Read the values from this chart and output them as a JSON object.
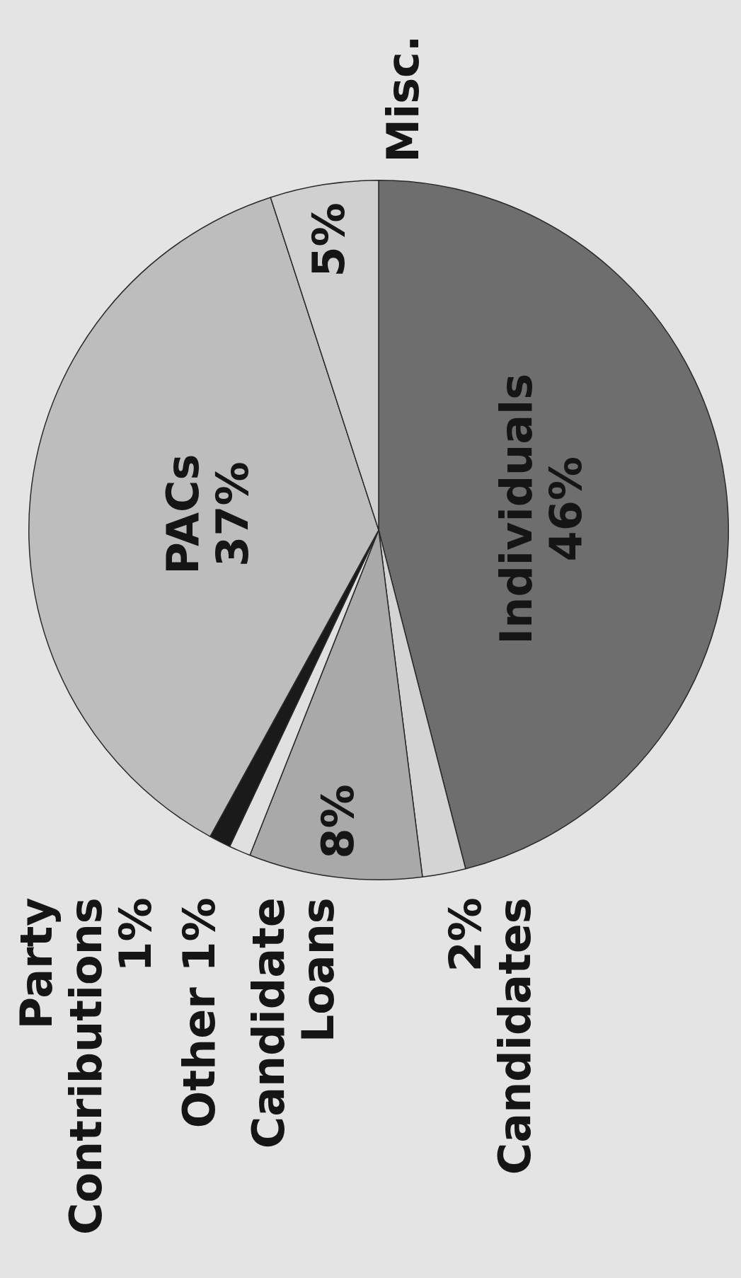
{
  "chart_data": {
    "type": "pie",
    "categories": [
      "Individuals",
      "Candidates",
      "Candidate Loans",
      "Other",
      "Party Contributions",
      "PACs",
      "Misc."
    ],
    "values": [
      46,
      2,
      8,
      1,
      1,
      37,
      5
    ],
    "value_labels": [
      "46%",
      "2%",
      "8%",
      "1%",
      "1%",
      "37%",
      "5%"
    ],
    "colors": [
      "#6e6e6e",
      "#d4d4d4",
      "#a9a9a9",
      "#e0e0e0",
      "#1a1a1a",
      "#bdbdbd",
      "#d0d0d0"
    ],
    "legend": false
  }
}
